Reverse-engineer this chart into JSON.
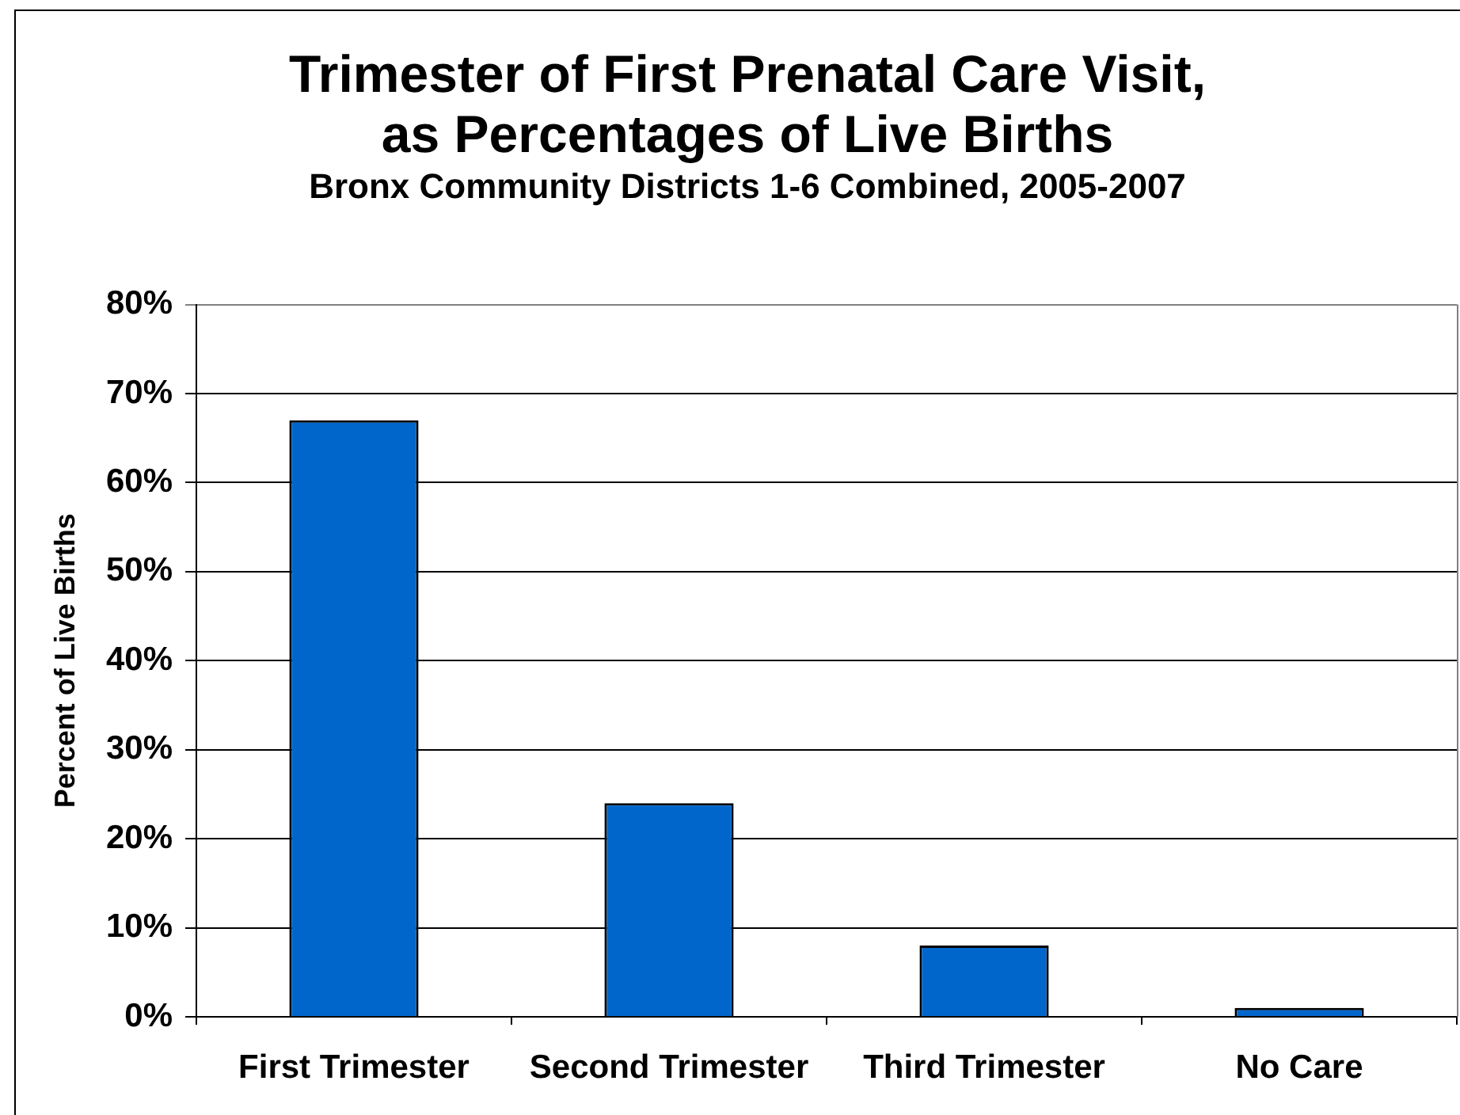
{
  "chart_data": {
    "type": "bar",
    "title": "Trimester of First Prenatal Care Visit,\nas Percentages of Live Births",
    "subtitle": "Bronx Community Districts 1-6 Combined, 2005-2007",
    "ylabel": "Percent of Live Births",
    "categories": [
      "First Trimester",
      "Second Trimester",
      "Third Trimester",
      "No Care"
    ],
    "values": [
      67,
      24,
      8,
      1
    ],
    "color": "#0066cc",
    "ylim": [
      0,
      80
    ],
    "yticks": [
      {
        "value": 0,
        "label": "0%"
      },
      {
        "value": 10,
        "label": "10%"
      },
      {
        "value": 20,
        "label": "20%"
      },
      {
        "value": 30,
        "label": "30%"
      },
      {
        "value": 40,
        "label": "40%"
      },
      {
        "value": 50,
        "label": "50%"
      },
      {
        "value": 60,
        "label": "60%"
      },
      {
        "value": 70,
        "label": "70%"
      },
      {
        "value": 80,
        "label": "80%"
      }
    ],
    "grid": "y"
  }
}
